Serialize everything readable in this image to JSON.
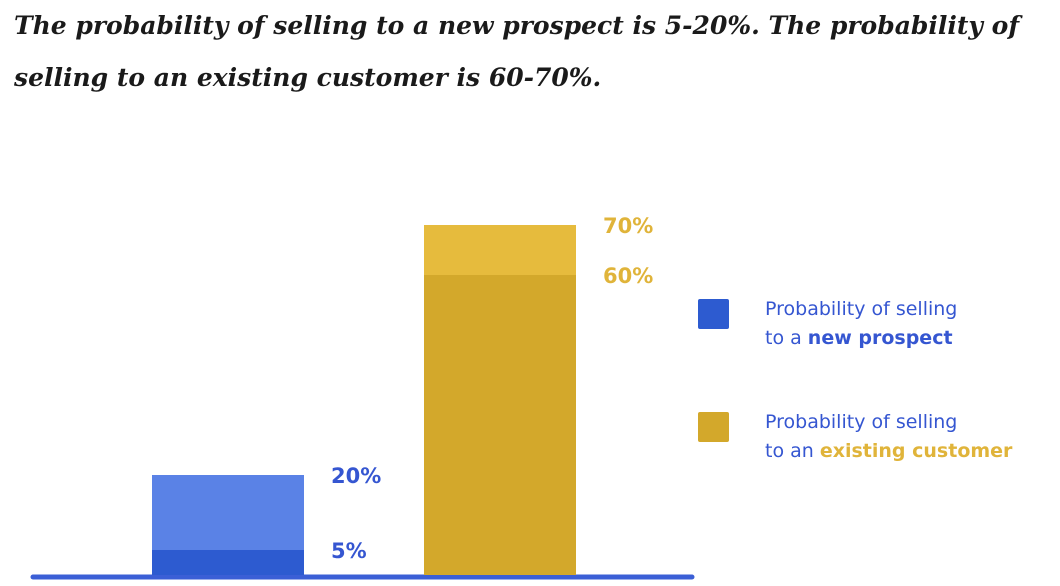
{
  "headline": "The probability of selling to a new prospect is 5-20%. The probability of selling to an existing customer is 60-70%.",
  "colors": {
    "blue_dark": "#2d5bd0",
    "blue_light": "#5a82e6",
    "gold_dark": "#d3a82b",
    "gold_light": "#e6bb3d",
    "baseline": "#3b5fd6",
    "blue_text": "#3556d1",
    "gold_text": "#e0b43a"
  },
  "legend": {
    "new_prospect": {
      "line1": "Probability of selling",
      "line2_prefix": "to a ",
      "line2_strong": "new prospect"
    },
    "existing_customer": {
      "line1": "Probability of selling",
      "line2_prefix": "to an ",
      "line2_strong": "existing customer"
    }
  },
  "chart_data": {
    "type": "bar",
    "categories": [
      "",
      ""
    ],
    "series": [
      {
        "name": "Probability of selling to a new prospect",
        "low": 5,
        "high": 20,
        "labels": [
          "5%",
          "20%"
        ]
      },
      {
        "name": "Probability of selling to an existing customer",
        "low": 60,
        "high": 70,
        "labels": [
          "60%",
          "70%"
        ]
      }
    ],
    "ylim": [
      0,
      75
    ],
    "grid": false,
    "legend_position": "right"
  }
}
